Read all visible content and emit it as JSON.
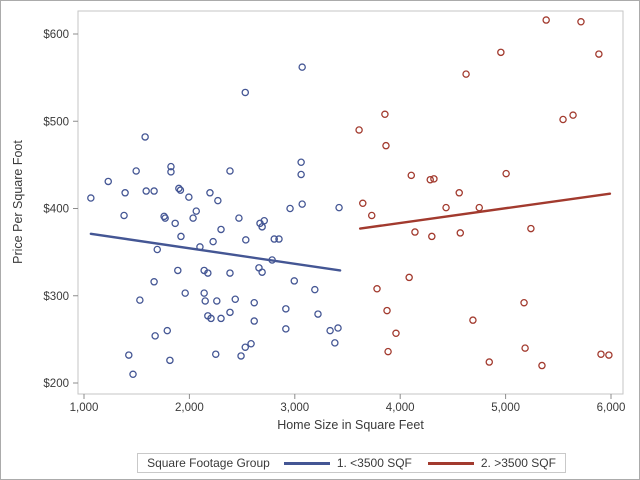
{
  "figure": {
    "background": "#ffffff",
    "border_color": "#ababab",
    "frame_color": "#c6c6c6",
    "tick_color": "#8c8c8c",
    "text_color": "#3a3a3a"
  },
  "chart_data": {
    "type": "scatter",
    "title": "",
    "xlabel": "Home Size in Square Feet",
    "ylabel": "Price Per Square Foot",
    "xlim": [
      1000,
      6000
    ],
    "ylim": [
      200,
      600
    ],
    "grid": false,
    "marker_style": "open-circle",
    "x_ticks": {
      "values": [
        1000,
        2000,
        3000,
        4000,
        5000,
        6000
      ],
      "labels": [
        "1,000",
        "2,000",
        "3,000",
        "4,000",
        "5,000",
        "6,000"
      ]
    },
    "y_ticks": {
      "values": [
        200,
        300,
        400,
        500,
        600
      ],
      "labels": [
        "$200",
        "$300",
        "$400",
        "$500",
        "$600"
      ]
    },
    "legend": {
      "title": "Square Footage Group",
      "position": "bottom-center"
    },
    "series": [
      {
        "name": "1. <3500 SQF",
        "color": "#445694",
        "points": [
          [
            3070,
            562
          ],
          [
            2530,
            533
          ],
          [
            1580,
            482
          ],
          [
            2385,
            443
          ],
          [
            3060,
            453
          ],
          [
            3060,
            439
          ],
          [
            1230,
            431
          ],
          [
            1495,
            443
          ],
          [
            1825,
            448
          ],
          [
            1825,
            442
          ],
          [
            1065,
            412
          ],
          [
            1390,
            418
          ],
          [
            1590,
            420
          ],
          [
            1665,
            420
          ],
          [
            1900,
            423
          ],
          [
            1915,
            421
          ],
          [
            1995,
            413
          ],
          [
            2195,
            418
          ],
          [
            2270,
            409
          ],
          [
            1380,
            392
          ],
          [
            1760,
            391
          ],
          [
            1770,
            389
          ],
          [
            1865,
            383
          ],
          [
            2035,
            389
          ],
          [
            2065,
            397
          ],
          [
            1920,
            368
          ],
          [
            2100,
            356
          ],
          [
            2225,
            362
          ],
          [
            2300,
            376
          ],
          [
            2470,
            389
          ],
          [
            2535,
            364
          ],
          [
            1695,
            353
          ],
          [
            2955,
            400
          ],
          [
            3070,
            405
          ],
          [
            3420,
            401
          ],
          [
            2670,
            383
          ],
          [
            2710,
            386
          ],
          [
            2690,
            379
          ],
          [
            2805,
            365
          ],
          [
            2850,
            365
          ],
          [
            2785,
            341
          ],
          [
            2660,
            332
          ],
          [
            2690,
            327
          ],
          [
            1890,
            329
          ],
          [
            2140,
            329
          ],
          [
            2175,
            326
          ],
          [
            2385,
            326
          ],
          [
            1665,
            316
          ],
          [
            1530,
            295
          ],
          [
            1960,
            303
          ],
          [
            2140,
            303
          ],
          [
            2150,
            294
          ],
          [
            2260,
            294
          ],
          [
            2435,
            296
          ],
          [
            2615,
            292
          ],
          [
            2175,
            277
          ],
          [
            2205,
            274
          ],
          [
            2300,
            274
          ],
          [
            2385,
            281
          ],
          [
            2615,
            271
          ],
          [
            1675,
            254
          ],
          [
            1790,
            260
          ],
          [
            1425,
            232
          ],
          [
            1815,
            226
          ],
          [
            2250,
            233
          ],
          [
            2490,
            231
          ],
          [
            2530,
            241
          ],
          [
            2585,
            245
          ],
          [
            1465,
            210
          ],
          [
            2995,
            317
          ],
          [
            3190,
            307
          ],
          [
            2915,
            285
          ],
          [
            3220,
            279
          ],
          [
            2915,
            262
          ],
          [
            3335,
            260
          ],
          [
            3410,
            263
          ],
          [
            3380,
            246
          ]
        ],
        "regression_line": {
          "x1": 1065,
          "y1": 371,
          "x2": 3430,
          "y2": 329
        }
      },
      {
        "name": "2. >3500 SQF",
        "color": "#A23A2E",
        "points": [
          [
            5385,
            616
          ],
          [
            5715,
            614
          ],
          [
            4955,
            579
          ],
          [
            5885,
            577
          ],
          [
            4625,
            554
          ],
          [
            5545,
            502
          ],
          [
            5640,
            507
          ],
          [
            3855,
            508
          ],
          [
            3610,
            490
          ],
          [
            3865,
            472
          ],
          [
            5005,
            440
          ],
          [
            4105,
            438
          ],
          [
            4285,
            433
          ],
          [
            4320,
            434
          ],
          [
            4560,
            418
          ],
          [
            4435,
            401
          ],
          [
            4750,
            401
          ],
          [
            3645,
            406
          ],
          [
            3730,
            392
          ],
          [
            4140,
            373
          ],
          [
            4300,
            368
          ],
          [
            4570,
            372
          ],
          [
            5240,
            377
          ],
          [
            3780,
            308
          ],
          [
            4085,
            321
          ],
          [
            3875,
            283
          ],
          [
            3960,
            257
          ],
          [
            3885,
            236
          ],
          [
            5175,
            292
          ],
          [
            4690,
            272
          ],
          [
            5185,
            240
          ],
          [
            4845,
            224
          ],
          [
            5345,
            220
          ],
          [
            5905,
            233
          ],
          [
            5980,
            232
          ]
        ],
        "regression_line": {
          "x1": 3620,
          "y1": 377,
          "x2": 5990,
          "y2": 417
        }
      }
    ]
  }
}
